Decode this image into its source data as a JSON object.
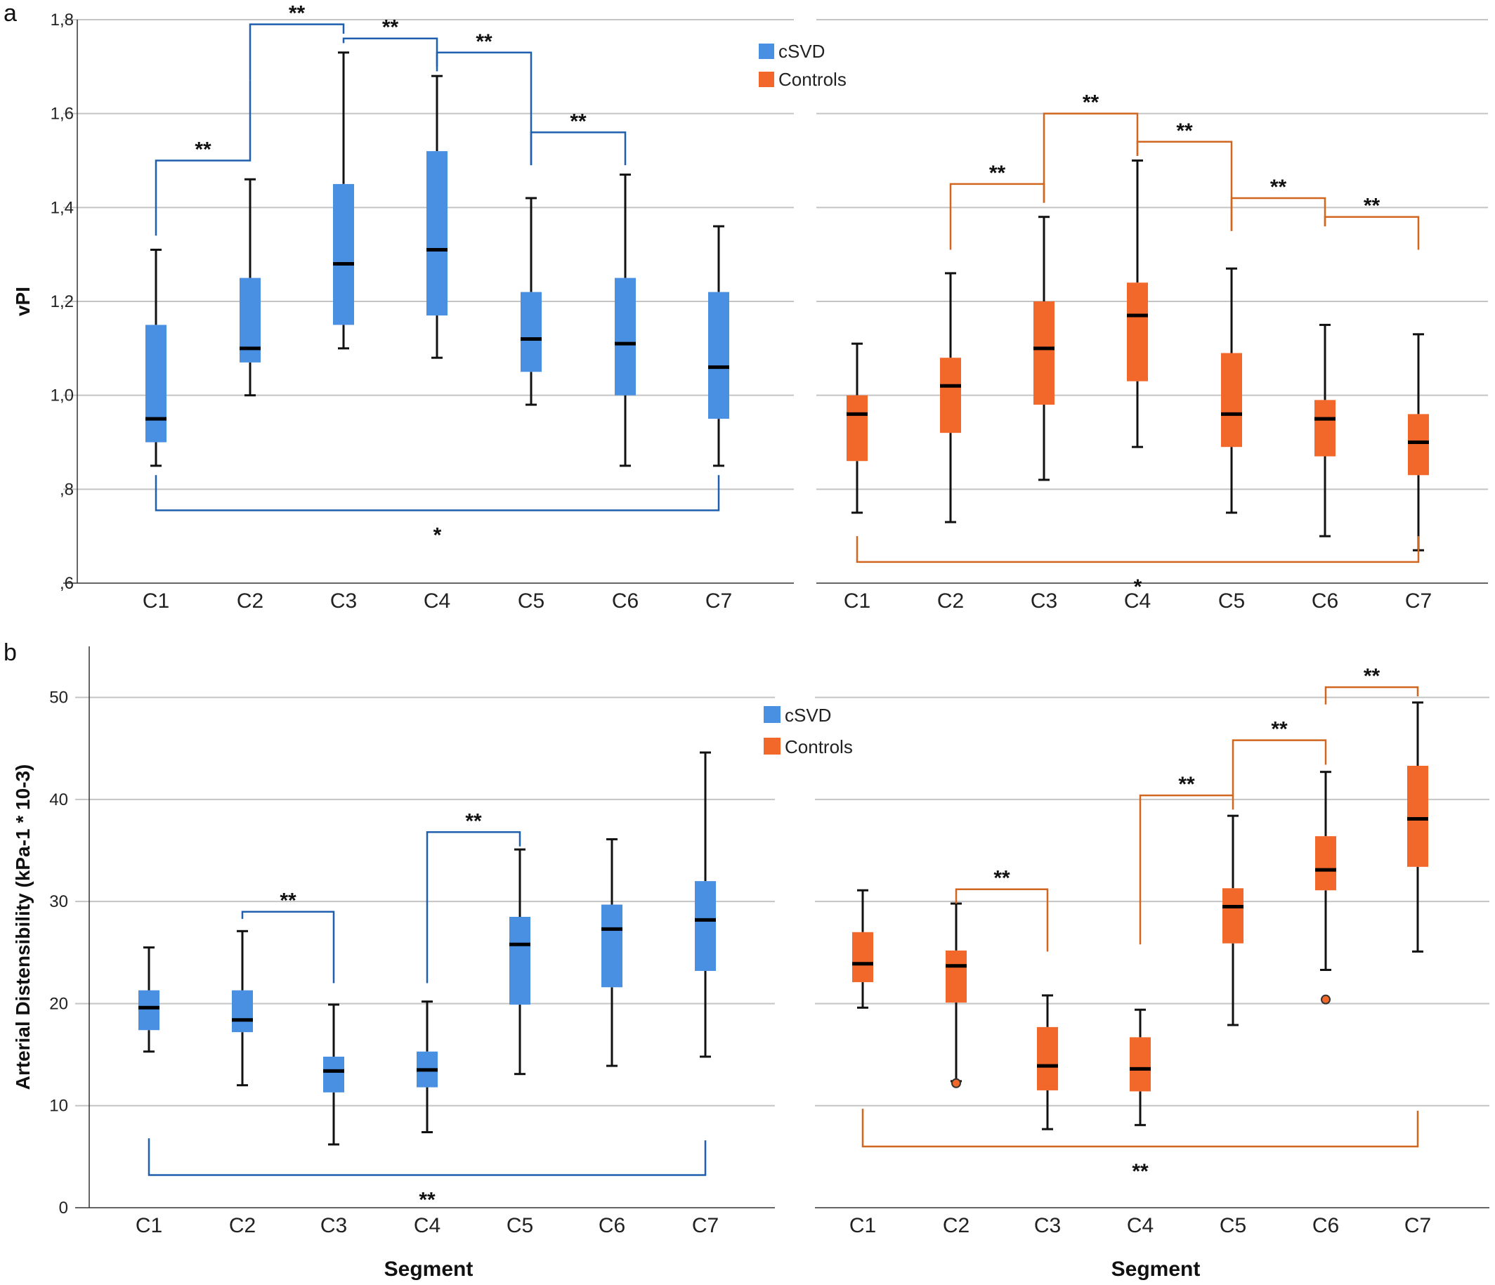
{
  "panel_labels": [
    "a",
    "b"
  ],
  "colors": {
    "csvd": "#4a90e2",
    "controls": "#f2672a",
    "csvd_bracket": "#1f5fae",
    "controls_bracket": "#d0661f"
  },
  "legend": {
    "items": [
      {
        "label": "cSVD",
        "color": "#4a90e2"
      },
      {
        "label": "Controls",
        "color": "#f2672a"
      }
    ]
  },
  "chart_data": [
    {
      "type": "boxplot",
      "panel": "a",
      "group": "cSVD",
      "ylabel": "vPI",
      "xlabel": "",
      "ylim": [
        0.6,
        1.8
      ],
      "yticks": [
        0.6,
        0.8,
        1.0,
        1.2,
        1.4,
        1.6,
        1.8
      ],
      "ytick_labels": [
        ",6",
        ",8",
        "1,0",
        "1,2",
        "1,4",
        "1,6",
        "1,8"
      ],
      "categories": [
        "C1",
        "C2",
        "C3",
        "C4",
        "C5",
        "C6",
        "C7"
      ],
      "boxes": [
        {
          "min": 0.85,
          "q1": 0.9,
          "median": 0.95,
          "q3": 1.15,
          "max": 1.31
        },
        {
          "min": 1.0,
          "q1": 1.07,
          "median": 1.1,
          "q3": 1.25,
          "max": 1.46
        },
        {
          "min": 1.1,
          "q1": 1.15,
          "median": 1.28,
          "q3": 1.45,
          "max": 1.73
        },
        {
          "min": 1.08,
          "q1": 1.17,
          "median": 1.31,
          "q3": 1.52,
          "max": 1.68
        },
        {
          "min": 0.98,
          "q1": 1.05,
          "median": 1.12,
          "q3": 1.22,
          "max": 1.42
        },
        {
          "min": 0.85,
          "q1": 1.0,
          "median": 1.11,
          "q3": 1.25,
          "max": 1.47
        },
        {
          "min": 0.85,
          "q1": 0.95,
          "median": 1.06,
          "q3": 1.22,
          "max": 1.36
        }
      ],
      "outliers": [],
      "significance": [
        {
          "from": "C1",
          "to": "C2",
          "label": "**",
          "level": 1.5,
          "start": [
            1.34,
            1.67
          ]
        },
        {
          "from": "C2",
          "to": "C3",
          "label": "**",
          "level": 1.79,
          "start": [
            1.67,
            1.77
          ]
        },
        {
          "from": "C3",
          "to": "C4",
          "label": "**",
          "level": 1.76,
          "start": [
            1.75,
            1.7
          ]
        },
        {
          "from": "C4",
          "to": "C5",
          "label": "**",
          "level": 1.73,
          "start": [
            1.69,
            1.49
          ]
        },
        {
          "from": "C5",
          "to": "C6",
          "label": "**",
          "level": 1.56,
          "start": [
            1.49,
            1.49
          ]
        },
        {
          "from": "C1",
          "to": "C7",
          "label": "*",
          "level": 0.755,
          "start": [
            0.83,
            0.83
          ],
          "below": true
        }
      ]
    },
    {
      "type": "boxplot",
      "panel": "a",
      "group": "Controls",
      "ylabel": "",
      "xlabel": "",
      "ylim": [
        0.6,
        1.8
      ],
      "yticks": [
        0.6,
        0.8,
        1.0,
        1.2,
        1.4,
        1.6,
        1.8
      ],
      "ytick_labels": [],
      "categories": [
        "C1",
        "C2",
        "C3",
        "C4",
        "C5",
        "C6",
        "C7"
      ],
      "boxes": [
        {
          "min": 0.75,
          "q1": 0.86,
          "median": 0.96,
          "q3": 1.0,
          "max": 1.11
        },
        {
          "min": 0.73,
          "q1": 0.92,
          "median": 1.02,
          "q3": 1.08,
          "max": 1.26
        },
        {
          "min": 0.82,
          "q1": 0.98,
          "median": 1.1,
          "q3": 1.2,
          "max": 1.38
        },
        {
          "min": 0.89,
          "q1": 1.03,
          "median": 1.17,
          "q3": 1.24,
          "max": 1.5
        },
        {
          "min": 0.75,
          "q1": 0.89,
          "median": 0.96,
          "q3": 1.09,
          "max": 1.27
        },
        {
          "min": 0.7,
          "q1": 0.87,
          "median": 0.95,
          "q3": 0.99,
          "max": 1.15
        },
        {
          "min": 0.67,
          "q1": 0.83,
          "median": 0.9,
          "q3": 0.96,
          "max": 1.13
        }
      ],
      "outliers": [],
      "significance": [
        {
          "from": "C2",
          "to": "C3",
          "label": "**",
          "level": 1.45,
          "start": [
            1.31,
            1.41
          ]
        },
        {
          "from": "C3",
          "to": "C4",
          "label": "**",
          "level": 1.6,
          "start": [
            1.41,
            1.51
          ]
        },
        {
          "from": "C4",
          "to": "C5",
          "label": "**",
          "level": 1.54,
          "start": [
            1.51,
            1.35
          ]
        },
        {
          "from": "C5",
          "to": "C6",
          "label": "**",
          "level": 1.42,
          "start": [
            1.35,
            1.36
          ]
        },
        {
          "from": "C6",
          "to": "C7",
          "label": "**",
          "level": 1.38,
          "start": [
            1.36,
            1.31
          ]
        },
        {
          "from": "C1",
          "to": "C7",
          "label": "*",
          "level": 0.645,
          "start": [
            0.7,
            0.7
          ],
          "below": true
        }
      ]
    },
    {
      "type": "boxplot",
      "panel": "b",
      "group": "cSVD",
      "ylabel": "Arterial Distensibility (kPa-1 * 10-3)",
      "xlabel": "Segment",
      "ylim": [
        0,
        55
      ],
      "yticks": [
        0,
        10,
        20,
        30,
        40,
        50
      ],
      "ytick_labels": [
        "0",
        "10",
        "20",
        "30",
        "40",
        "50"
      ],
      "categories": [
        "C1",
        "C2",
        "C3",
        "C4",
        "C5",
        "C6",
        "C7"
      ],
      "boxes": [
        {
          "min": 15.3,
          "q1": 17.4,
          "median": 19.6,
          "q3": 21.3,
          "max": 25.5
        },
        {
          "min": 12.0,
          "q1": 17.2,
          "median": 18.4,
          "q3": 21.3,
          "max": 27.1
        },
        {
          "min": 6.2,
          "q1": 11.3,
          "median": 13.4,
          "q3": 14.8,
          "max": 19.9
        },
        {
          "min": 7.4,
          "q1": 11.8,
          "median": 13.5,
          "q3": 15.3,
          "max": 20.2
        },
        {
          "min": 13.1,
          "q1": 19.9,
          "median": 25.8,
          "q3": 28.5,
          "max": 35.1
        },
        {
          "min": 13.9,
          "q1": 21.6,
          "median": 27.3,
          "q3": 29.7,
          "max": 36.1
        },
        {
          "min": 14.8,
          "q1": 23.2,
          "median": 28.2,
          "q3": 32.0,
          "max": 44.6
        }
      ],
      "outliers": [],
      "significance": [
        {
          "from": "C2",
          "to": "C3",
          "label": "**",
          "level": 29.0,
          "start": [
            28.3,
            22.0
          ]
        },
        {
          "from": "C4",
          "to": "C5",
          "label": "**",
          "level": 36.8,
          "start": [
            22.0,
            35.4
          ]
        },
        {
          "from": "C1",
          "to": "C7",
          "label": "**",
          "level": 3.2,
          "start": [
            6.8,
            6.6
          ],
          "below": true
        }
      ]
    },
    {
      "type": "boxplot",
      "panel": "b",
      "group": "Controls",
      "ylabel": "",
      "xlabel": "Segment",
      "ylim": [
        0,
        55
      ],
      "yticks": [
        0,
        10,
        20,
        30,
        40,
        50
      ],
      "ytick_labels": [],
      "categories": [
        "C1",
        "C2",
        "C3",
        "C4",
        "C5",
        "C6",
        "C7"
      ],
      "boxes": [
        {
          "min": 19.6,
          "q1": 22.1,
          "median": 23.9,
          "q3": 27.0,
          "max": 31.1
        },
        {
          "min": 12.4,
          "q1": 20.1,
          "median": 23.7,
          "q3": 25.2,
          "max": 29.8
        },
        {
          "min": 7.7,
          "q1": 11.5,
          "median": 13.9,
          "q3": 17.7,
          "max": 20.8
        },
        {
          "min": 8.1,
          "q1": 11.4,
          "median": 13.6,
          "q3": 16.7,
          "max": 19.4
        },
        {
          "min": 17.9,
          "q1": 25.9,
          "median": 29.5,
          "q3": 31.3,
          "max": 38.4
        },
        {
          "min": 23.3,
          "q1": 31.1,
          "median": 33.1,
          "q3": 36.4,
          "max": 42.7
        },
        {
          "min": 25.1,
          "q1": 33.4,
          "median": 38.1,
          "q3": 43.3,
          "max": 49.5
        }
      ],
      "outliers": [
        {
          "category": "C2",
          "value": 12.2
        },
        {
          "category": "C6",
          "value": 20.4
        }
      ],
      "significance": [
        {
          "from": "C2",
          "to": "C3",
          "label": "**",
          "level": 31.2,
          "start": [
            29.8,
            25.1
          ]
        },
        {
          "from": "C4",
          "to": "C5",
          "label": "**",
          "level": 40.4,
          "start": [
            25.8,
            39.0
          ]
        },
        {
          "from": "C5",
          "to": "C6",
          "label": "**",
          "level": 45.8,
          "start": [
            40.4,
            43.4
          ]
        },
        {
          "from": "C6",
          "to": "C7",
          "label": "**",
          "level": 51.0,
          "start": [
            49.3,
            50.1
          ]
        },
        {
          "from": "C1",
          "to": "C7",
          "label": "**",
          "level": 6.0,
          "start": [
            9.7,
            9.5
          ],
          "below": true
        }
      ]
    }
  ]
}
